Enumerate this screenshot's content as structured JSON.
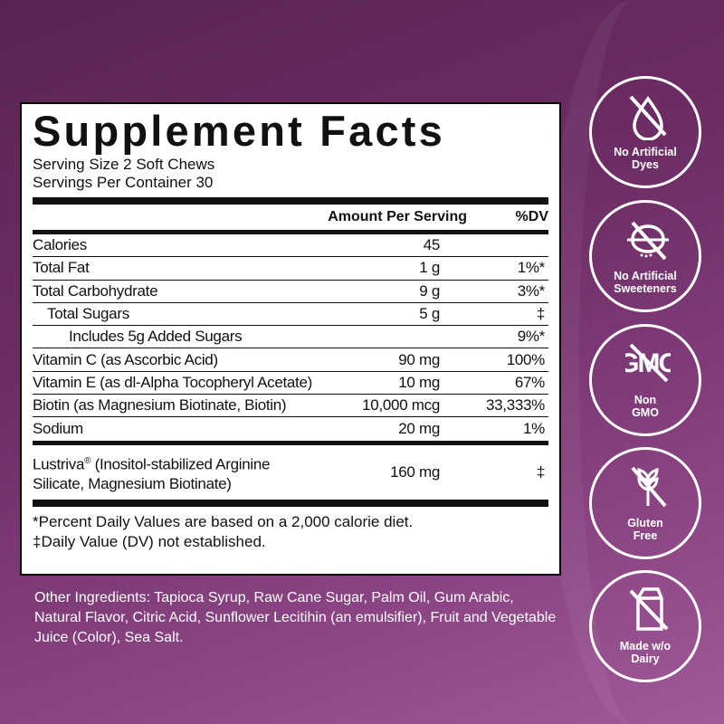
{
  "facts": {
    "title": "Supplement Facts",
    "serving_size": "Serving Size 2 Soft Chews",
    "servings_per_container": "Servings Per Container 30",
    "header_amount": "Amount Per Serving",
    "header_dv": "%DV",
    "rows": [
      {
        "name": "Calories",
        "amount": "45",
        "dv": ""
      },
      {
        "name": "Total Fat",
        "amount": "1 g",
        "dv": "1%*"
      },
      {
        "name": "Total Carbohydrate",
        "amount": "9 g",
        "dv": "3%*"
      },
      {
        "name": "Total Sugars",
        "amount": "5 g",
        "dv": "‡"
      },
      {
        "name": "Includes 5g Added Sugars",
        "amount": "",
        "dv": "9%*"
      },
      {
        "name": "Vitamin C (as Ascorbic Acid)",
        "amount": "90 mg",
        "dv": "100%"
      },
      {
        "name": "Vitamin E (as dl-Alpha Tocopheryl Acetate)",
        "amount": "10 mg",
        "dv": "67%"
      },
      {
        "name": "Biotin (as Magnesium Biotinate, Biotin)",
        "amount": "10,000 mcg",
        "dv": "33,333%"
      },
      {
        "name": "Sodium",
        "amount": "20 mg",
        "dv": "1%"
      }
    ],
    "blend": {
      "name_brand": "Lustriva",
      "reg": "®",
      "name_rest": " (Inositol-stabilized Arginine",
      "name_line2": "Silicate, Magnesium Biotinate)",
      "amount": "160 mg",
      "dv": "‡"
    },
    "footnote1": "*Percent Daily Values are based on a 2,000 calorie diet.",
    "footnote2": "‡Daily Value (DV) not established."
  },
  "other_ingredients": "Other Ingredients: Tapioca Syrup, Raw Cane Sugar, Palm Oil, Gum Arabic, Natural Flavor, Citric Acid, Sunflower Lecitihin (an emulsifier), Fruit and Vegetable Juice (Color), Sea Salt.",
  "badges": [
    {
      "icon": "no-drop-icon",
      "l1": "No Artificial",
      "l2": "Dyes"
    },
    {
      "icon": "no-sweetener-icon",
      "l1": "No Artificial",
      "l2": "Sweeteners"
    },
    {
      "icon": "gmo-icon",
      "l1": "Non",
      "l2": "GMO",
      "icon_text": "GMO"
    },
    {
      "icon": "no-wheat-icon",
      "l1": "Gluten",
      "l2": "Free"
    },
    {
      "icon": "no-milk-icon",
      "l1": "Made w/o",
      "l2": "Dairy"
    }
  ]
}
